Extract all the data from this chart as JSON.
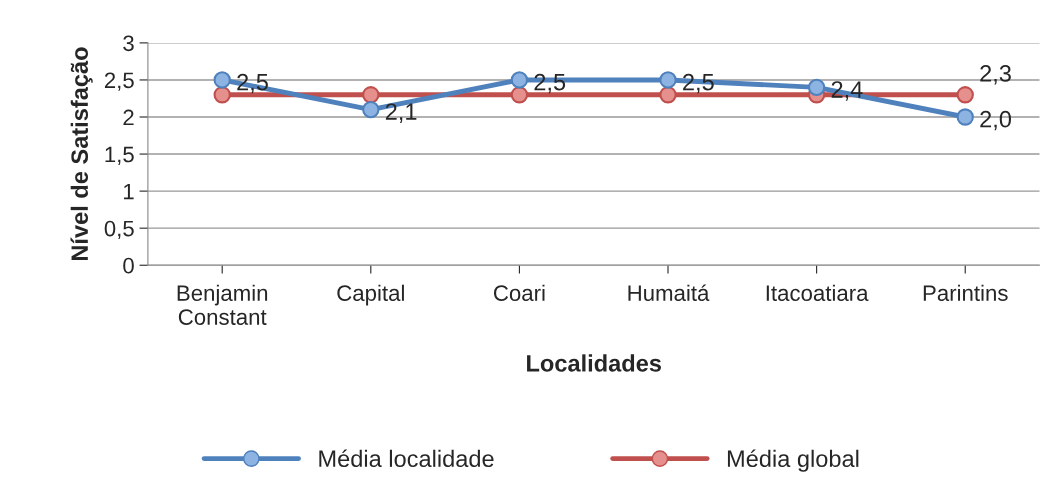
{
  "chart_data": {
    "type": "line",
    "xlabel": "Localidades",
    "ylabel": "Nível de Satisfação",
    "categories": [
      "Benjamin Constant",
      "Capital",
      "Coari",
      "Humaitá",
      "Itacoatiara",
      "Parintins"
    ],
    "series": [
      {
        "name": "Média localidade",
        "color": "#4f81bd",
        "values": [
          2.5,
          2.1,
          2.5,
          2.5,
          2.4,
          2.0
        ],
        "value_labels": [
          "2,5",
          "2,1",
          "2,5",
          "2,5",
          "2,4",
          "2,0"
        ]
      },
      {
        "name": "Média global",
        "color": "#c0504d",
        "values": [
          2.3,
          2.3,
          2.3,
          2.3,
          2.3,
          2.3
        ],
        "value_labels": [
          null,
          null,
          null,
          null,
          null,
          "2,3"
        ]
      }
    ],
    "ylim": [
      0,
      3
    ],
    "yticks": [
      0,
      {
        "value": 0.5,
        "label": "0,5"
      },
      1,
      {
        "value": 1.5,
        "label": "1,5"
      },
      2,
      {
        "value": 2.5,
        "label": "2,5"
      },
      3
    ],
    "grid": "y",
    "legend": "bottom",
    "marker": "circle",
    "line_style": "solid"
  }
}
